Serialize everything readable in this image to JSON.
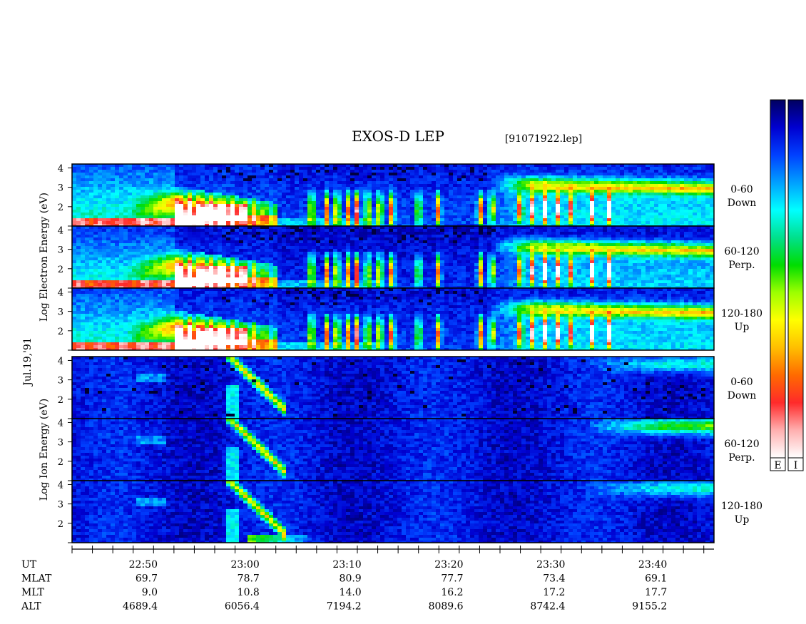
{
  "chart_data": {
    "type": "heatmap",
    "title": "EXOS-D LEP",
    "file_tag": "[91071922.lep]",
    "date_label": "Jul.19,'91",
    "groups": [
      {
        "id": "electron",
        "ylabel": "Log  Electron  Energy  (eV)",
        "panels": [
          {
            "angle": "0-60",
            "direction": "Down"
          },
          {
            "angle": "60-120",
            "direction": "Perp."
          },
          {
            "angle": "120-180",
            "direction": "Up"
          }
        ]
      },
      {
        "id": "ion",
        "ylabel": "Log  Ion  Energy  (eV)",
        "panels": [
          {
            "angle": "0-60",
            "direction": "Down"
          },
          {
            "angle": "60-120",
            "direction": "Perp."
          },
          {
            "angle": "120-180",
            "direction": "Up"
          }
        ]
      }
    ],
    "yticks": [
      "1",
      "2",
      "3",
      "4"
    ],
    "ylim": [
      1,
      4.2
    ],
    "x_time_range": [
      "22:43",
      "23:46"
    ],
    "xticks": [
      "22:50",
      "23:00",
      "23:10",
      "23:20",
      "23:30",
      "23:40"
    ],
    "rows": [
      {
        "label": "UT",
        "values": [
          "22:50",
          "23:00",
          "23:10",
          "23:20",
          "23:30",
          "23:40"
        ]
      },
      {
        "label": "MLAT",
        "values": [
          "69.7",
          "78.7",
          "80.9",
          "77.7",
          "73.4",
          "69.1"
        ]
      },
      {
        "label": "MLT",
        "values": [
          "9.0",
          "10.8",
          "14.0",
          "16.2",
          "17.2",
          "17.7"
        ]
      },
      {
        "label": "ALT",
        "values": [
          "4689.4",
          "6056.4",
          "7194.2",
          "8089.6",
          "8742.4",
          "9155.2"
        ]
      }
    ],
    "colorbars": [
      {
        "label": "E"
      },
      {
        "label": "I"
      }
    ],
    "colormap": [
      "#ffffff",
      "#ffb0b0",
      "#ff2a2a",
      "#ff6a00",
      "#ffbf00",
      "#ffff00",
      "#9cff00",
      "#00dd00",
      "#00e08c",
      "#00ffff",
      "#00a0ff",
      "#0040ff",
      "#0000d0",
      "#000060"
    ]
  }
}
